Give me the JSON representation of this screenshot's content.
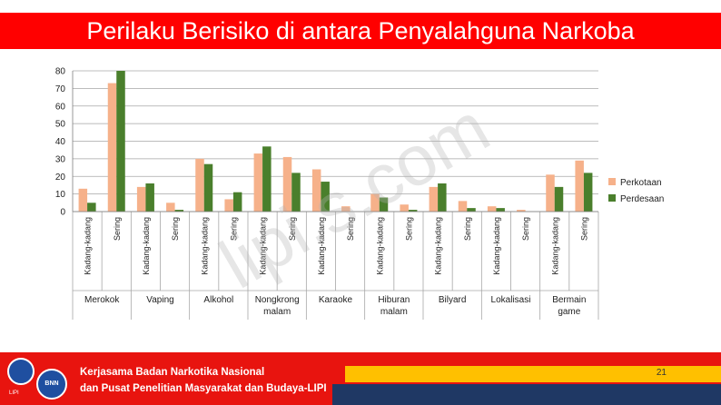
{
  "slide": {
    "title": "Perilaku Berisiko di antara Penyalahguna Narkoba",
    "watermark": "lipi.s.com",
    "footer_line1": "Kerjasama Badan Narkotika Nasional",
    "footer_line2": "dan Pusat Penelitian Masyarakat dan Budaya-LIPI",
    "page_number": "21",
    "logo_left_text": "LIPI",
    "logo_right_text": "BNN"
  },
  "colors": {
    "perkotaan": "#f6b18a",
    "perdesaan": "#4a7f2c",
    "title_bg": "#ff0000",
    "footer_bg": "#e8140f",
    "yellow_bar": "#ffc000",
    "navy_bar": "#1f3864"
  },
  "chart_data": {
    "type": "bar",
    "ylim": [
      0,
      80
    ],
    "yticks": [
      0,
      10,
      20,
      30,
      40,
      50,
      60,
      70,
      80
    ],
    "legend_position": "right",
    "grid": true,
    "groups": [
      {
        "label": "Merokok",
        "sub": [
          "Kadang-kadang",
          "Sering"
        ]
      },
      {
        "label": "Vaping",
        "sub": [
          "Kadang-kadang",
          "Sering"
        ]
      },
      {
        "label": "Alkohol",
        "sub": [
          "Kadang-kadang",
          "Sering"
        ]
      },
      {
        "label": "Nongkrong malam",
        "sub": [
          "Kadang-kadang",
          "Sering"
        ]
      },
      {
        "label": "Karaoke",
        "sub": [
          "Kadang-kadang",
          "Sering"
        ]
      },
      {
        "label": "Hiburan malam",
        "sub": [
          "Kadang-kadang",
          "Sering"
        ]
      },
      {
        "label": "Bilyard",
        "sub": [
          "Kadang-kadang",
          "Sering"
        ]
      },
      {
        "label": "Lokalisasi",
        "sub": [
          "Kadang-kadang",
          "Sering"
        ]
      },
      {
        "label": "Bermain game",
        "sub": [
          "Kadang-kadang",
          "Sering"
        ]
      }
    ],
    "series": [
      {
        "name": "Perkotaan",
        "values": [
          13,
          73,
          14,
          5,
          30,
          7,
          33,
          31,
          24,
          3,
          10,
          4,
          14,
          6,
          3,
          1,
          21,
          29
        ]
      },
      {
        "name": "Perdesaan",
        "values": [
          5,
          80,
          16,
          1,
          27,
          11,
          37,
          22,
          17,
          0,
          8,
          1,
          16,
          2,
          2,
          0,
          14,
          22
        ]
      }
    ]
  }
}
